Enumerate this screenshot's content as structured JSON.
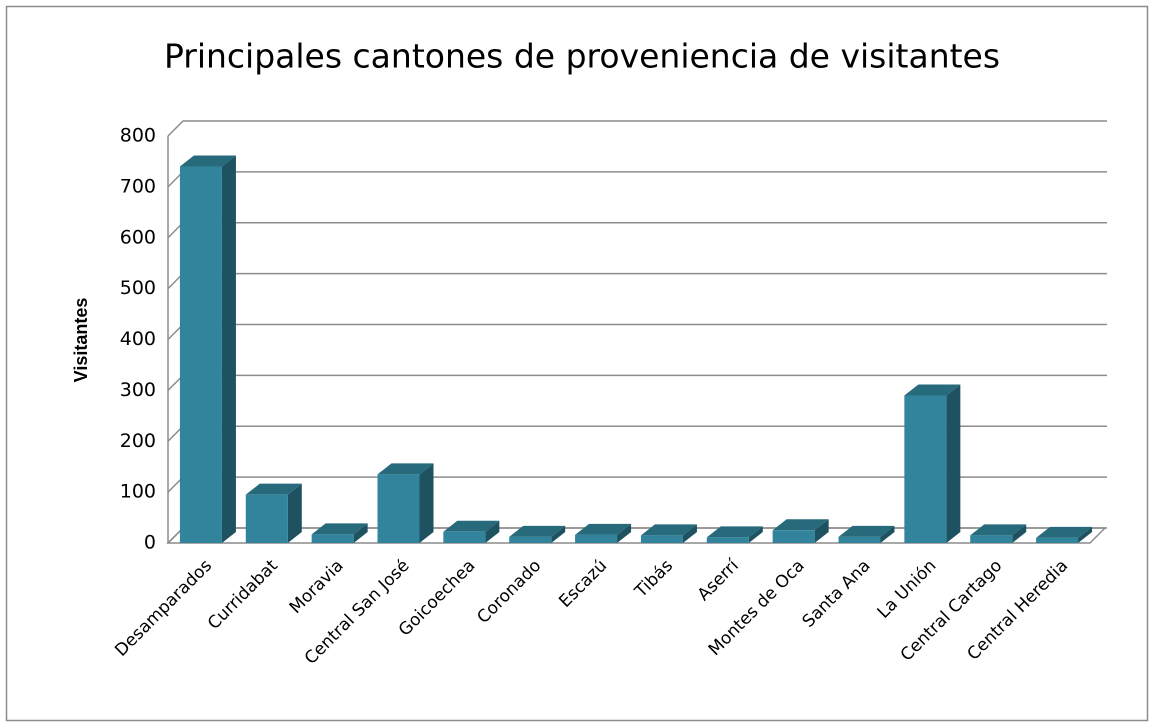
{
  "chart_data": {
    "type": "bar3d",
    "title": "Principales cantones de proveniencia de visitantes",
    "y_label": "Visitantes",
    "categories": [
      "Desamparados",
      "Curridabat",
      "Moravia",
      "Central San José",
      "Goicoechea",
      "Coronado",
      "Escazú",
      "Tibás",
      "Aserrí",
      "Montes de Oca",
      "Santa Ana",
      "La Unión",
      "Central Cartago",
      "Central Heredia"
    ],
    "values": [
      740,
      95,
      17,
      135,
      22,
      12,
      16,
      15,
      11,
      25,
      12,
      290,
      15,
      10
    ],
    "color": "#31849b",
    "ylim": [
      0,
      800
    ],
    "yticks": [
      0,
      100,
      200,
      300,
      400,
      500,
      600,
      700,
      800
    ],
    "grid": true
  }
}
